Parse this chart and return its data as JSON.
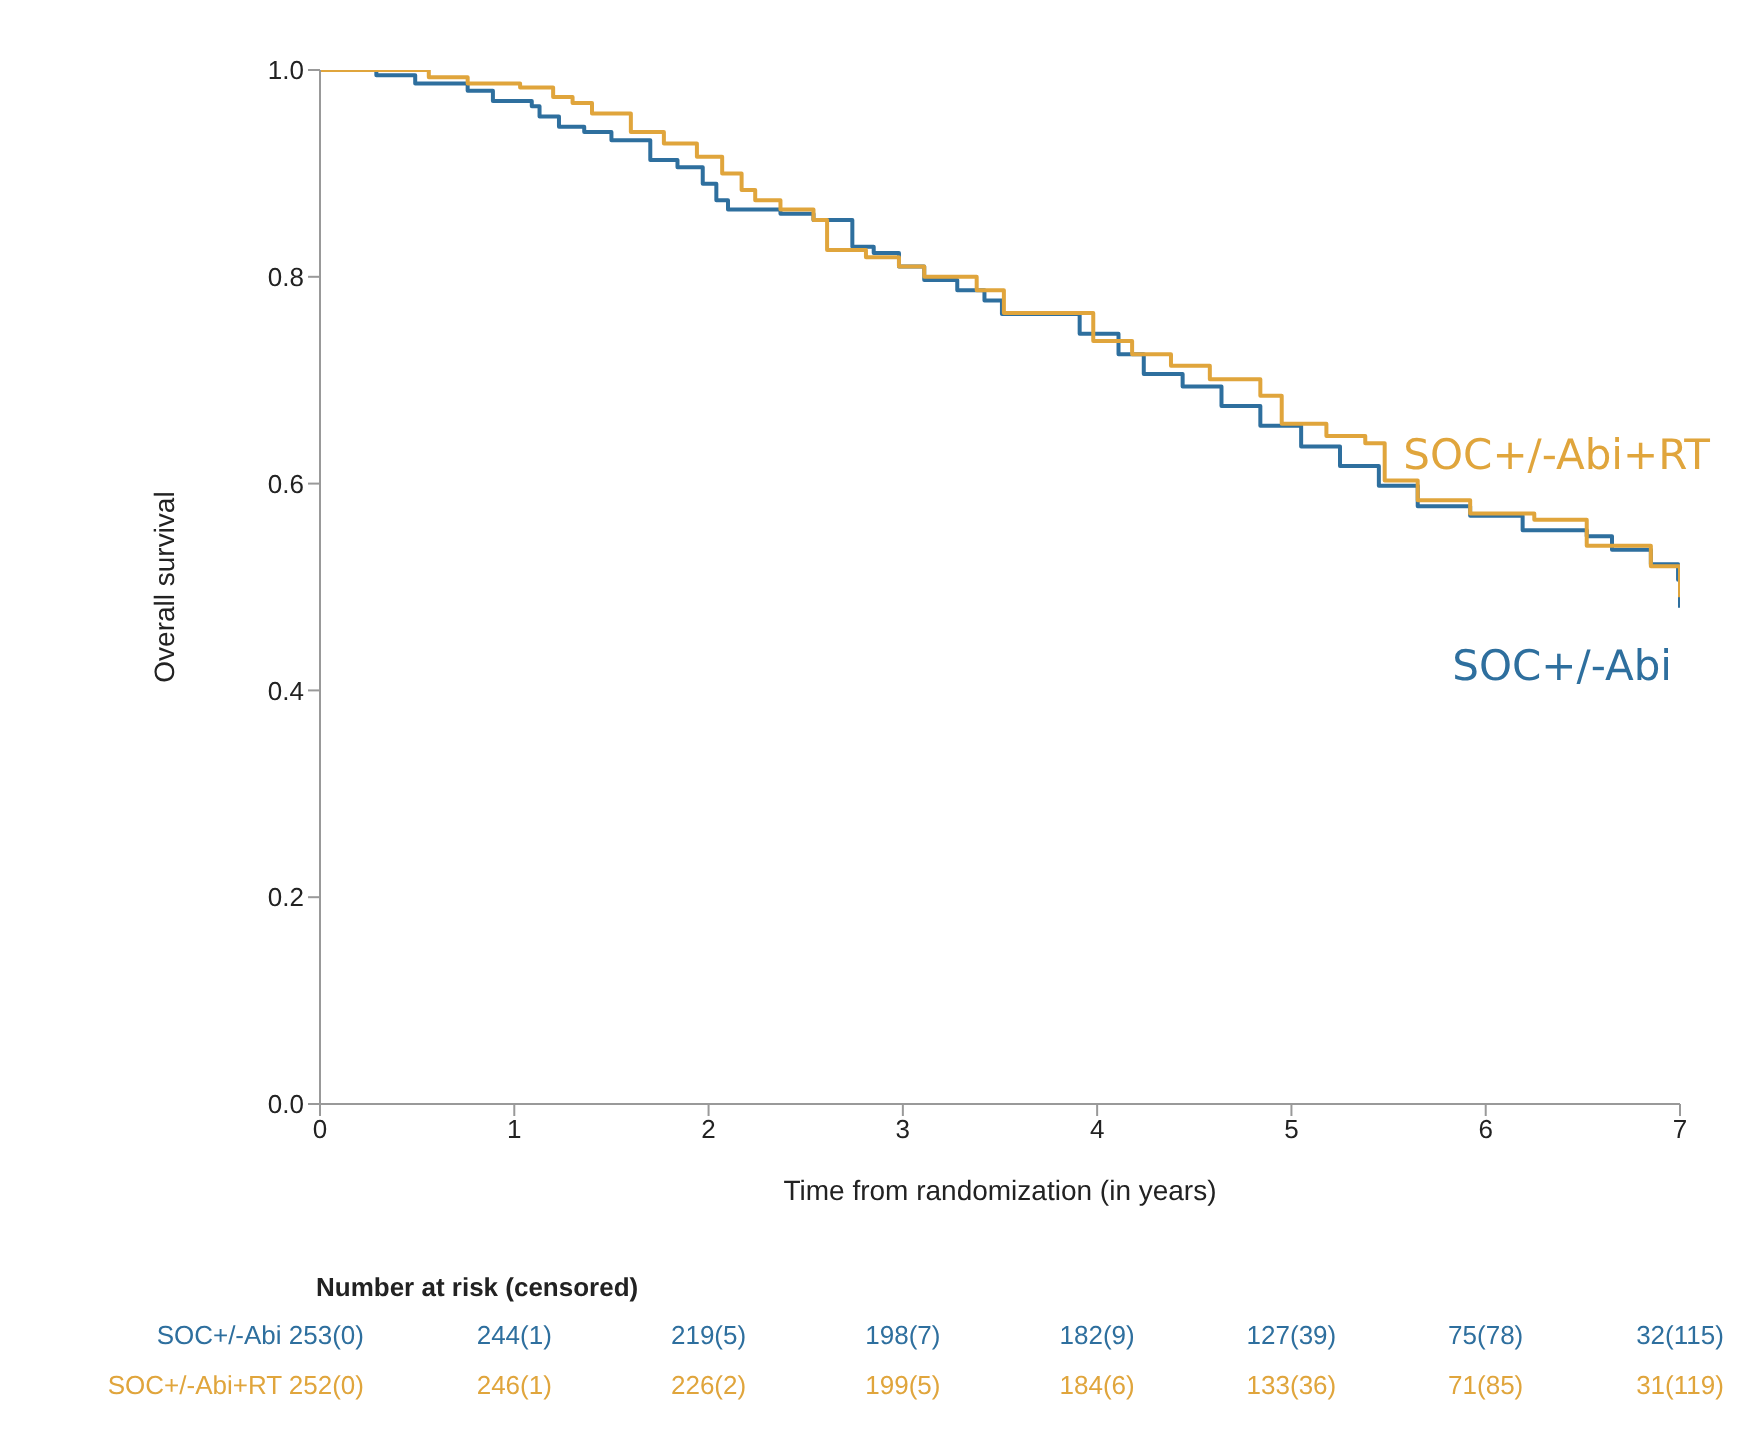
{
  "chart_data": {
    "type": "step",
    "xlabel": "Time from randomization (in years)",
    "ylabel": "Overall survival",
    "xlim": [
      0,
      7
    ],
    "xticks": [
      0,
      1,
      2,
      3,
      4,
      5,
      6,
      7
    ],
    "ylim": [
      0,
      1
    ],
    "yticks": [
      {
        "value": 0,
        "label": "0.0"
      },
      {
        "value": 0.2,
        "label": "0.2"
      },
      {
        "value": 0.4,
        "label": "0.4"
      },
      {
        "value": 0.6,
        "label": "0.6"
      },
      {
        "value": 0.8,
        "label": "0.8"
      },
      {
        "value": 1,
        "label": "1.0"
      }
    ],
    "grid": false,
    "legend": false,
    "marker": "none",
    "line_style": "solid",
    "series": [
      {
        "name": "SOC+/-Abi",
        "color": "#2e6f9e",
        "x": [
          0,
          0.29,
          0.49,
          0.76,
          0.89,
          1.09,
          1.13,
          1.23,
          1.36,
          1.5,
          1.7,
          1.84,
          1.97,
          2.04,
          2.1,
          2.37,
          2.54,
          2.74,
          2.85,
          2.98,
          3.11,
          3.28,
          3.42,
          3.51,
          3.91,
          4.11,
          4.24,
          4.44,
          4.64,
          4.84,
          5.05,
          5.25,
          5.45,
          5.65,
          5.92,
          6.19,
          6.52,
          6.65,
          6.85,
          6.99,
          7.0
        ],
        "values": [
          1.0,
          0.995,
          0.987,
          0.98,
          0.97,
          0.965,
          0.955,
          0.945,
          0.94,
          0.932,
          0.913,
          0.906,
          0.89,
          0.874,
          0.865,
          0.861,
          0.855,
          0.829,
          0.823,
          0.81,
          0.797,
          0.787,
          0.777,
          0.764,
          0.745,
          0.725,
          0.706,
          0.694,
          0.675,
          0.656,
          0.636,
          0.617,
          0.598,
          0.578,
          0.569,
          0.555,
          0.549,
          0.536,
          0.522,
          0.507,
          0.48
        ]
      },
      {
        "name": "SOC+/-Abi+RT",
        "color": "#e0a53c",
        "x": [
          0,
          0.56,
          0.76,
          1.03,
          1.2,
          1.3,
          1.4,
          1.6,
          1.77,
          1.94,
          2.07,
          2.17,
          2.24,
          2.37,
          2.54,
          2.61,
          2.81,
          2.98,
          3.11,
          3.38,
          3.52,
          3.98,
          4.18,
          4.38,
          4.58,
          4.84,
          4.95,
          5.18,
          5.38,
          5.48,
          5.65,
          5.92,
          6.25,
          6.52,
          6.85,
          7.0
        ],
        "values": [
          1.0,
          0.993,
          0.987,
          0.983,
          0.974,
          0.968,
          0.958,
          0.94,
          0.929,
          0.916,
          0.9,
          0.884,
          0.874,
          0.865,
          0.855,
          0.826,
          0.819,
          0.81,
          0.8,
          0.787,
          0.765,
          0.738,
          0.725,
          0.714,
          0.701,
          0.685,
          0.658,
          0.646,
          0.639,
          0.603,
          0.584,
          0.571,
          0.565,
          0.54,
          0.52,
          0.49
        ]
      }
    ],
    "annotations": [
      "Number at risk (censored)",
      "SOC+/-Abi 253(0)",
      "244(1)",
      "219(5)",
      "198(7)",
      "182(9)",
      "127(39)",
      "75(78)",
      "32(115)",
      "SOC+/-Abi+RT 252(0)",
      "246(1)",
      "226(2)",
      "199(5)",
      "184(6)",
      "133(36)",
      "71(85)",
      "31(119)"
    ]
  }
}
